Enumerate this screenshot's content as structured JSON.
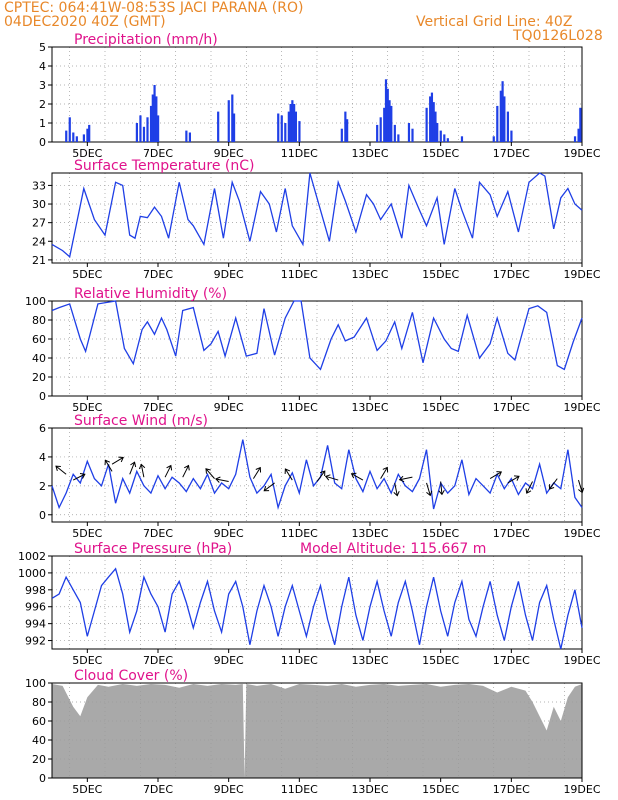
{
  "header": {
    "line1": "CPTEC:   064:41W-08:53S   JACI PARANA (RO)",
    "line2": "04DEC2020 40Z (GMT)",
    "grid_note": "Vertical Grid Line: 40Z",
    "code": "TQ0126L028"
  },
  "colors": {
    "header": "#e8882a",
    "title": "#e0138c",
    "line": "#1f3fe6",
    "cloud": "#a9a9a9"
  },
  "chart_data": [
    {
      "type": "bar",
      "title": "Precipitation (mm/h)",
      "xlabel": "",
      "ylabel": "",
      "ylim": [
        0,
        5
      ],
      "yticks": [
        "0",
        "1",
        "2",
        "3",
        "4",
        "5"
      ],
      "xticks": [
        "5DEC",
        "7DEC",
        "9DEC",
        "11DEC",
        "13DEC",
        "15DEC",
        "17DEC",
        "19DEC"
      ],
      "x_range_days": [
        4.0,
        19.0
      ],
      "series": [
        {
          "x": [
            4.4,
            4.5,
            4.6,
            4.7,
            4.9,
            5.0,
            5.05
          ],
          "values": [
            0.6,
            1.3,
            0.5,
            0.3,
            0.4,
            0.7,
            0.9
          ]
        },
        {
          "x": [
            6.4,
            6.5,
            6.6,
            6.7,
            6.8,
            6.85,
            6.9,
            6.95,
            7.0
          ],
          "values": [
            1.0,
            1.4,
            0.8,
            1.3,
            1.9,
            2.5,
            3.0,
            2.4,
            1.4
          ]
        },
        {
          "x": [
            7.8,
            7.9,
            8.7,
            9.0,
            9.1,
            9.15
          ],
          "values": [
            0.6,
            0.5,
            1.6,
            2.2,
            2.5,
            1.5
          ]
        },
        {
          "x": [
            10.4,
            10.5,
            10.6,
            10.7,
            10.75,
            10.8,
            10.85,
            10.9,
            11.0
          ],
          "values": [
            1.5,
            1.4,
            1.0,
            1.6,
            2.0,
            2.2,
            2.0,
            1.6,
            1.1
          ]
        },
        {
          "x": [
            12.2,
            12.3,
            12.35
          ],
          "values": [
            0.7,
            1.6,
            1.2
          ]
        },
        {
          "x": [
            13.2,
            13.3,
            13.4,
            13.45,
            13.5,
            13.55,
            13.6,
            13.7,
            13.8,
            14.1,
            14.2
          ],
          "values": [
            0.9,
            1.3,
            1.8,
            3.3,
            2.8,
            2.2,
            1.9,
            0.9,
            0.4,
            1.0,
            0.7
          ]
        },
        {
          "x": [
            14.6,
            14.7,
            14.75,
            14.8,
            14.85,
            14.9,
            15.0,
            15.1,
            15.2
          ],
          "values": [
            1.8,
            2.4,
            2.6,
            2.1,
            1.6,
            1.0,
            0.6,
            0.4,
            0.2
          ]
        },
        {
          "x": [
            15.6,
            16.5,
            16.6,
            16.7,
            16.75,
            16.8,
            16.9,
            17.0
          ],
          "values": [
            0.3,
            0.3,
            1.9,
            2.7,
            3.2,
            2.4,
            1.6,
            0.6
          ]
        },
        {
          "x": [
            18.8,
            18.9,
            18.95
          ],
          "values": [
            0.3,
            0.7,
            1.8
          ]
        }
      ]
    },
    {
      "type": "line",
      "title": "Surface Temperature (nC)",
      "ylim": [
        20.5,
        35
      ],
      "yticks": [
        "21",
        "24",
        "27",
        "30",
        "33"
      ],
      "xticks": [
        "5DEC",
        "7DEC",
        "9DEC",
        "11DEC",
        "13DEC",
        "15DEC",
        "17DEC",
        "19DEC"
      ],
      "x": [
        4.0,
        4.3,
        4.5,
        4.9,
        5.2,
        5.5,
        5.8,
        6.0,
        6.2,
        6.35,
        6.5,
        6.7,
        6.9,
        7.1,
        7.3,
        7.6,
        7.85,
        8.0,
        8.3,
        8.6,
        8.85,
        9.1,
        9.3,
        9.6,
        9.9,
        10.15,
        10.35,
        10.6,
        10.8,
        11.1,
        11.3,
        11.6,
        11.85,
        12.1,
        12.3,
        12.6,
        12.9,
        13.1,
        13.3,
        13.6,
        13.9,
        14.1,
        14.4,
        14.6,
        14.9,
        15.1,
        15.4,
        15.6,
        15.9,
        16.1,
        16.4,
        16.6,
        16.9,
        17.2,
        17.5,
        17.8,
        17.95,
        18.2,
        18.4,
        18.6,
        18.8,
        19.0
      ],
      "values": [
        23.5,
        22.5,
        21.5,
        32.5,
        27.5,
        25.0,
        33.5,
        33.0,
        25.0,
        24.5,
        28.0,
        27.8,
        29.5,
        28.0,
        24.5,
        33.5,
        27.5,
        26.5,
        23.5,
        32.5,
        24.5,
        33.5,
        30.5,
        24.0,
        32.0,
        30.0,
        25.5,
        32.5,
        26.5,
        23.5,
        35.0,
        29.0,
        24.0,
        33.5,
        30.5,
        25.5,
        31.5,
        30.0,
        27.5,
        30.0,
        24.5,
        33.0,
        29.0,
        26.5,
        31.0,
        23.5,
        32.5,
        29.0,
        24.5,
        33.5,
        31.5,
        28.0,
        32.0,
        25.5,
        33.5,
        35.0,
        34.5,
        26.0,
        31.0,
        32.5,
        30.0,
        29.0
      ],
      "name": ""
    },
    {
      "type": "line",
      "title": "Relative Humidity (%)",
      "ylim": [
        0,
        100
      ],
      "yticks": [
        "0",
        "20",
        "40",
        "60",
        "80",
        "100"
      ],
      "xticks": [
        "5DEC",
        "7DEC",
        "9DEC",
        "11DEC",
        "13DEC",
        "15DEC",
        "17DEC",
        "19DEC"
      ],
      "x": [
        4.0,
        4.2,
        4.5,
        4.8,
        4.95,
        5.3,
        5.8,
        6.05,
        6.3,
        6.55,
        6.7,
        6.9,
        7.1,
        7.25,
        7.5,
        7.7,
        8.0,
        8.3,
        8.5,
        8.7,
        8.9,
        9.2,
        9.5,
        9.8,
        10.0,
        10.3,
        10.6,
        10.85,
        11.05,
        11.3,
        11.6,
        11.9,
        12.1,
        12.3,
        12.55,
        12.9,
        13.2,
        13.45,
        13.7,
        13.9,
        14.2,
        14.5,
        14.8,
        15.1,
        15.3,
        15.5,
        15.75,
        16.1,
        16.4,
        16.6,
        16.9,
        17.1,
        17.5,
        17.75,
        18.0,
        18.3,
        18.5,
        18.75,
        19.0
      ],
      "values": [
        90,
        93,
        97,
        60,
        47,
        97,
        100,
        50,
        34,
        70,
        78,
        65,
        82,
        70,
        42,
        90,
        93,
        48,
        55,
        68,
        42,
        82,
        42,
        45,
        92,
        43,
        82,
        100,
        100,
        40,
        28,
        60,
        75,
        58,
        62,
        82,
        48,
        58,
        78,
        50,
        88,
        35,
        82,
        60,
        50,
        47,
        85,
        40,
        55,
        82,
        45,
        38,
        92,
        95,
        88,
        32,
        28,
        57,
        82
      ],
      "name": ""
    },
    {
      "type": "line",
      "title": "Surface Wind (m/s)",
      "ylim": [
        -0.5,
        6
      ],
      "yticks": [
        "0",
        "2",
        "4",
        "6"
      ],
      "xticks": [
        "5DEC",
        "7DEC",
        "9DEC",
        "11DEC",
        "13DEC",
        "15DEC",
        "17DEC",
        "19DEC"
      ],
      "x": [
        4.0,
        4.2,
        4.4,
        4.6,
        4.8,
        5.0,
        5.2,
        5.4,
        5.6,
        5.8,
        6.0,
        6.2,
        6.4,
        6.6,
        6.8,
        7.0,
        7.2,
        7.4,
        7.6,
        7.8,
        8.0,
        8.2,
        8.4,
        8.6,
        8.8,
        9.0,
        9.2,
        9.4,
        9.6,
        9.8,
        10.0,
        10.2,
        10.4,
        10.6,
        10.8,
        11.0,
        11.2,
        11.4,
        11.6,
        11.8,
        12.0,
        12.2,
        12.4,
        12.6,
        12.8,
        13.0,
        13.2,
        13.4,
        13.6,
        13.8,
        14.0,
        14.2,
        14.4,
        14.6,
        14.8,
        15.0,
        15.2,
        15.4,
        15.6,
        15.8,
        16.0,
        16.2,
        16.4,
        16.6,
        16.8,
        17.0,
        17.2,
        17.4,
        17.6,
        17.8,
        18.0,
        18.2,
        18.4,
        18.6,
        18.8,
        19.0
      ],
      "values": [
        2.0,
        0.5,
        1.5,
        2.8,
        2.2,
        3.7,
        2.5,
        2.0,
        3.5,
        0.8,
        2.5,
        1.5,
        3.0,
        2.0,
        1.5,
        2.7,
        1.8,
        2.6,
        2.2,
        1.6,
        2.5,
        1.8,
        2.8,
        1.5,
        2.2,
        1.8,
        2.8,
        5.2,
        2.6,
        1.5,
        2.0,
        2.8,
        0.5,
        2.0,
        2.9,
        1.5,
        3.8,
        2.0,
        2.6,
        4.8,
        2.2,
        1.8,
        4.5,
        2.5,
        1.6,
        3.0,
        1.8,
        2.5,
        1.5,
        2.8,
        2.0,
        1.6,
        2.5,
        4.5,
        0.4,
        2.2,
        1.5,
        2.0,
        3.8,
        1.4,
        2.5,
        2.0,
        1.5,
        2.8,
        1.8,
        2.5,
        1.4,
        2.2,
        1.8,
        3.5,
        1.5,
        2.2,
        1.8,
        4.5,
        1.2,
        0.5
      ],
      "name": "",
      "arrows": [
        {
          "x": 4.6,
          "y": 2.4,
          "dir": [
            1,
            -0.5
          ]
        },
        {
          "x": 4.4,
          "y": 2.8,
          "dir": [
            -1,
            -0.8
          ]
        },
        {
          "x": 5.7,
          "y": 3.0,
          "dir": [
            -0.6,
            -1
          ]
        },
        {
          "x": 5.7,
          "y": 3.5,
          "dir": [
            1,
            -0.6
          ]
        },
        {
          "x": 6.2,
          "y": 2.8,
          "dir": [
            0.4,
            -1
          ]
        },
        {
          "x": 6.6,
          "y": 2.6,
          "dir": [
            -0.2,
            -1
          ]
        },
        {
          "x": 7.2,
          "y": 2.6,
          "dir": [
            0.5,
            -1
          ]
        },
        {
          "x": 7.7,
          "y": 2.6,
          "dir": [
            0.5,
            -1
          ]
        },
        {
          "x": 8.6,
          "y": 2.5,
          "dir": [
            -0.7,
            -0.8
          ]
        },
        {
          "x": 9.0,
          "y": 2.3,
          "dir": [
            -1,
            -0.2
          ]
        },
        {
          "x": 9.7,
          "y": 2.5,
          "dir": [
            0.5,
            -0.8
          ]
        },
        {
          "x": 10.3,
          "y": 2.2,
          "dir": [
            -0.8,
            0.6
          ]
        },
        {
          "x": 10.8,
          "y": 2.4,
          "dir": [
            -0.5,
            -0.8
          ]
        },
        {
          "x": 11.5,
          "y": 2.3,
          "dir": [
            0.6,
            -0.8
          ]
        },
        {
          "x": 12.1,
          "y": 2.4,
          "dir": [
            -1,
            -0.3
          ]
        },
        {
          "x": 12.8,
          "y": 2.4,
          "dir": [
            -0.9,
            -0.5
          ]
        },
        {
          "x": 13.3,
          "y": 2.5,
          "dir": [
            0.6,
            -1
          ]
        },
        {
          "x": 13.7,
          "y": 2.2,
          "dir": [
            0.2,
            1
          ]
        },
        {
          "x": 14.2,
          "y": 2.6,
          "dir": [
            -1,
            0.2
          ]
        },
        {
          "x": 14.6,
          "y": 2.2,
          "dir": [
            0.3,
            1
          ]
        },
        {
          "x": 15.0,
          "y": 2.3,
          "dir": [
            0.1,
            1
          ]
        },
        {
          "x": 16.4,
          "y": 2.5,
          "dir": [
            1,
            -0.6
          ]
        },
        {
          "x": 16.9,
          "y": 2.2,
          "dir": [
            1,
            -0.6
          ]
        },
        {
          "x": 17.6,
          "y": 2.3,
          "dir": [
            -0.5,
            1
          ]
        },
        {
          "x": 18.3,
          "y": 2.5,
          "dir": [
            -0.6,
            0.8
          ]
        },
        {
          "x": 18.9,
          "y": 2.4,
          "dir": [
            0.3,
            1
          ]
        }
      ]
    },
    {
      "type": "line",
      "title": "Surface Pressure (hPa)",
      "annotation": "Model Altitude: 115.667  m",
      "ylim": [
        991,
        1002
      ],
      "yticks": [
        "992",
        "994",
        "996",
        "998",
        "1000",
        "1002"
      ],
      "xticks": [
        "5DEC",
        "7DEC",
        "9DEC",
        "11DEC",
        "13DEC",
        "15DEC",
        "17DEC",
        "19DEC"
      ],
      "x": [
        4.0,
        4.2,
        4.4,
        4.6,
        4.8,
        5.0,
        5.2,
        5.4,
        5.6,
        5.8,
        6.0,
        6.2,
        6.4,
        6.6,
        6.8,
        7.0,
        7.2,
        7.4,
        7.6,
        7.8,
        8.0,
        8.2,
        8.4,
        8.6,
        8.8,
        9.0,
        9.2,
        9.4,
        9.6,
        9.8,
        10.0,
        10.2,
        10.4,
        10.6,
        10.8,
        11.0,
        11.2,
        11.4,
        11.6,
        11.8,
        12.0,
        12.2,
        12.4,
        12.6,
        12.8,
        13.0,
        13.2,
        13.4,
        13.6,
        13.8,
        14.0,
        14.2,
        14.4,
        14.6,
        14.8,
        15.0,
        15.2,
        15.4,
        15.6,
        15.8,
        16.0,
        16.2,
        16.4,
        16.6,
        16.8,
        17.0,
        17.2,
        17.4,
        17.6,
        17.8,
        18.0,
        18.2,
        18.4,
        18.6,
        18.8,
        19.0
      ],
      "values": [
        997,
        997.5,
        999.5,
        998,
        996.5,
        992.5,
        995.5,
        998.5,
        999.5,
        1000.5,
        997.5,
        993,
        995.5,
        999.5,
        997.5,
        996,
        993,
        997.5,
        999,
        996.5,
        993.5,
        996.5,
        999,
        995.5,
        993,
        997.5,
        999,
        996,
        991.5,
        995.5,
        998.5,
        996,
        992.5,
        996,
        998.5,
        995.5,
        992.5,
        996,
        998.5,
        994.5,
        991.5,
        996,
        999.5,
        995,
        992,
        996,
        999,
        995.5,
        992.5,
        996.5,
        999,
        995.5,
        991.5,
        996,
        999.5,
        995.5,
        992.5,
        996.5,
        999,
        994.5,
        992.5,
        996,
        999,
        995,
        992,
        996,
        999,
        995,
        992,
        996.5,
        998.5,
        994.5,
        991,
        995,
        998,
        993.5
      ]
    },
    {
      "type": "area",
      "title": "Cloud Cover (%)",
      "ylim": [
        0,
        100
      ],
      "yticks": [
        "0",
        "20",
        "40",
        "60",
        "80",
        "100"
      ],
      "xticks": [
        "5DEC",
        "7DEC",
        "9DEC",
        "11DEC",
        "13DEC",
        "15DEC",
        "17DEC",
        "19DEC"
      ],
      "x": [
        4.0,
        4.3,
        4.6,
        4.8,
        5.0,
        5.3,
        5.6,
        6.0,
        6.4,
        6.8,
        7.2,
        7.6,
        8.0,
        8.4,
        8.8,
        9.2,
        9.4,
        9.45,
        9.5,
        9.8,
        10.2,
        10.6,
        11.0,
        11.4,
        11.8,
        12.2,
        12.6,
        13.0,
        13.4,
        13.8,
        14.2,
        14.6,
        15.0,
        15.4,
        15.8,
        16.2,
        16.6,
        17.0,
        17.4,
        17.6,
        17.8,
        18.0,
        18.2,
        18.4,
        18.6,
        18.8,
        19.0
      ],
      "values": [
        99,
        97,
        75,
        65,
        85,
        98,
        96,
        99,
        97,
        99,
        98,
        95,
        99,
        97,
        99,
        98,
        99,
        0,
        99,
        97,
        99,
        94,
        99,
        98,
        97,
        99,
        96,
        98,
        99,
        97,
        98,
        99,
        96,
        98,
        99,
        97,
        90,
        96,
        92,
        80,
        65,
        50,
        75,
        60,
        85,
        96,
        99
      ]
    }
  ]
}
